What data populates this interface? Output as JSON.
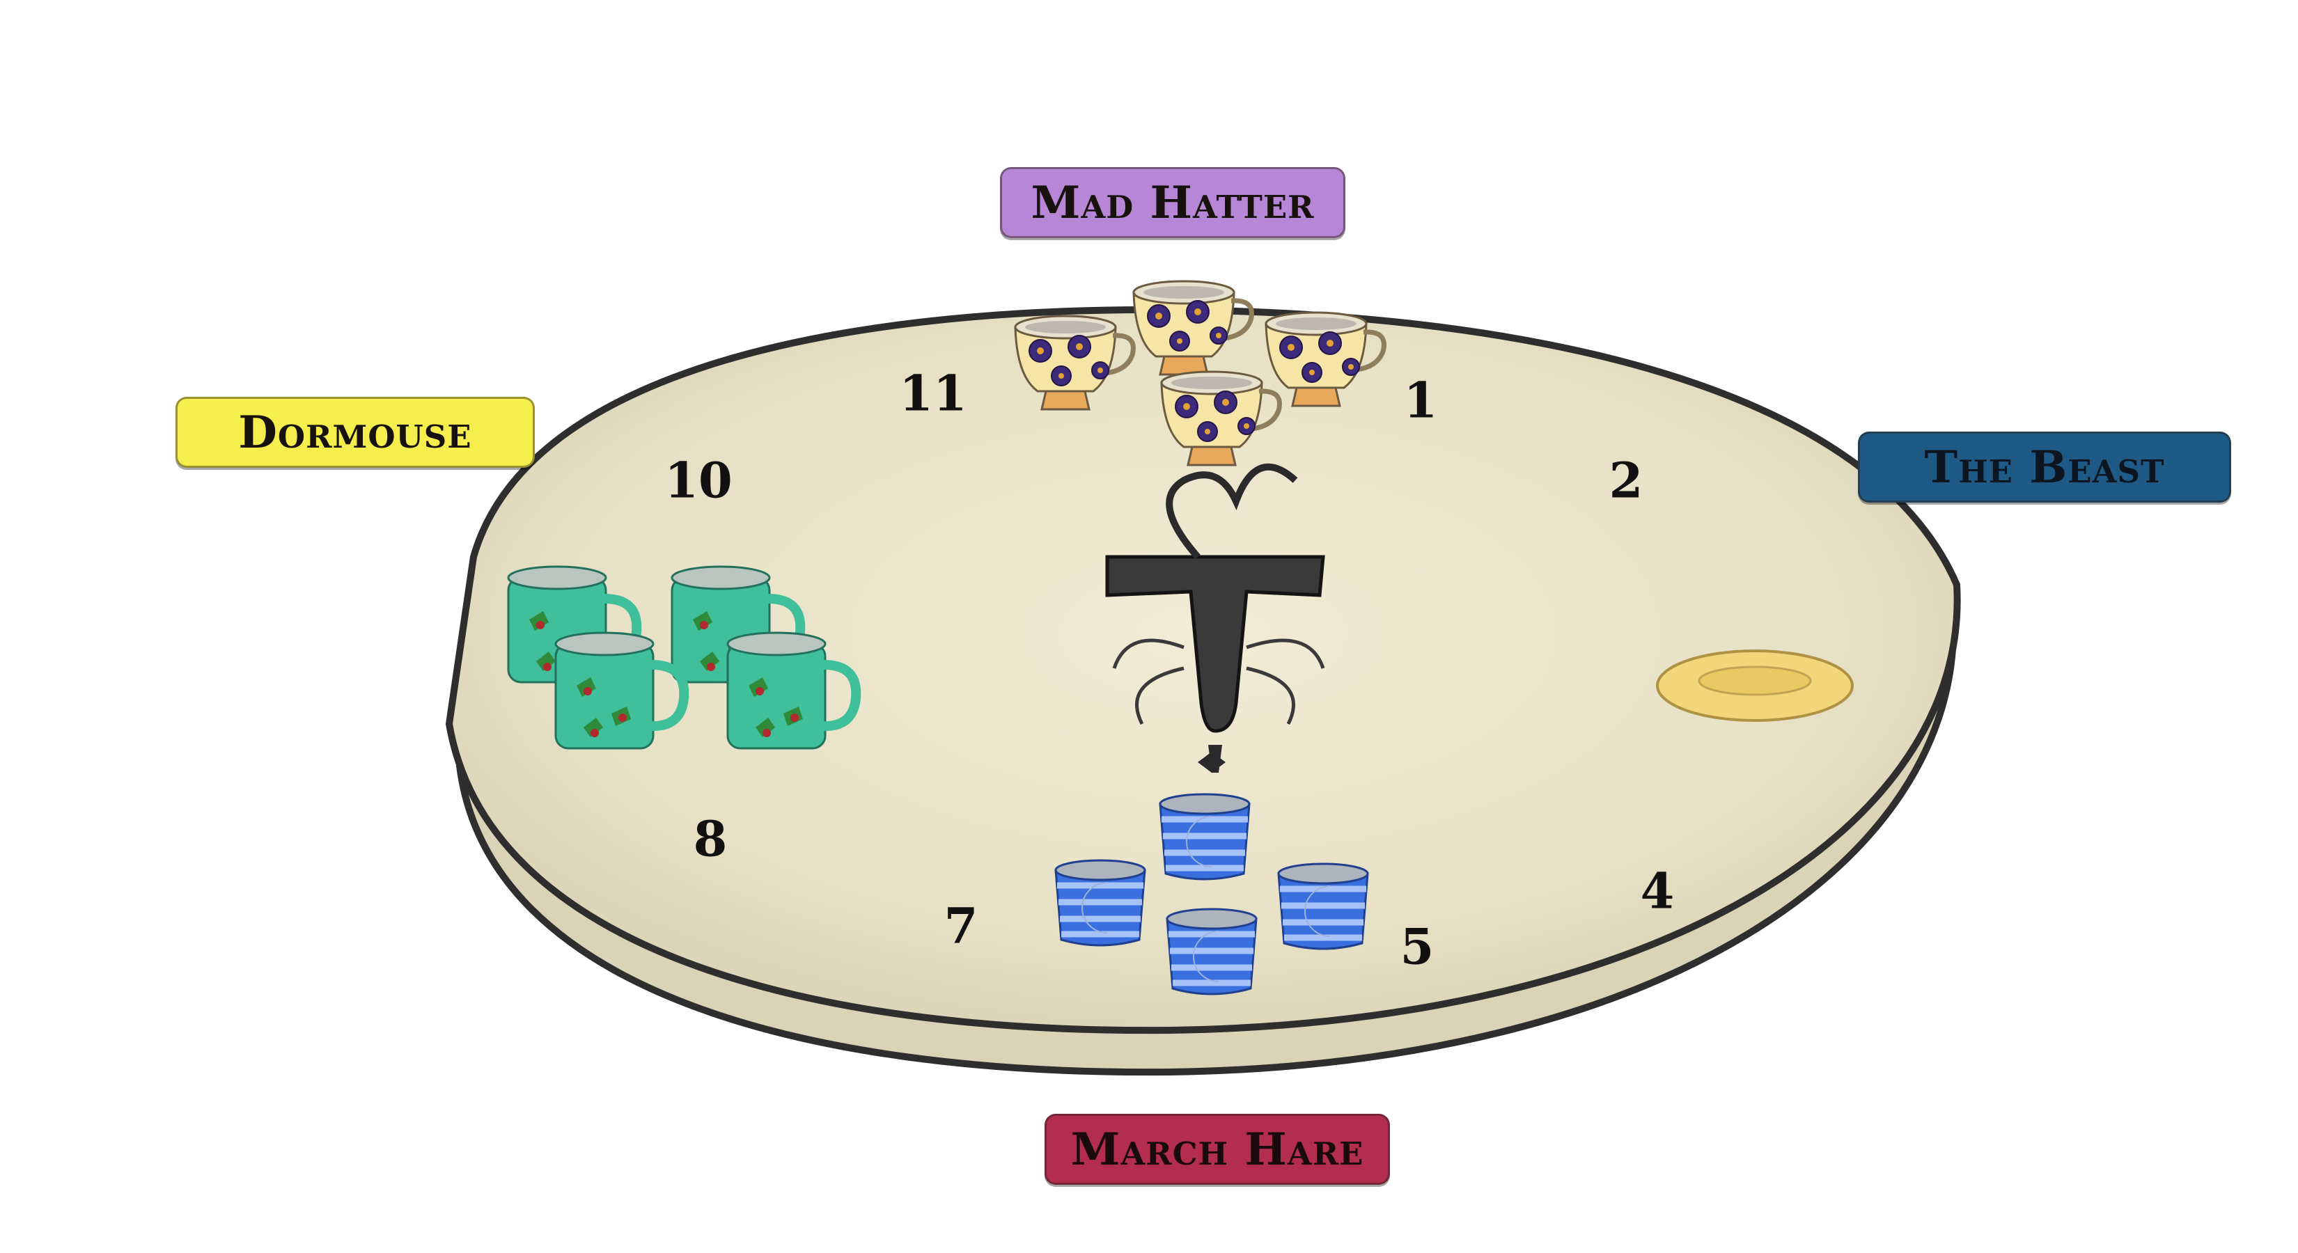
{
  "characters": {
    "top": "Mad Hatter",
    "left": "Dormouse",
    "right": "The Beast",
    "bottom": "March Hare"
  },
  "seats": [
    {
      "id": "seat-1",
      "label": "1"
    },
    {
      "id": "seat-2",
      "label": "2"
    },
    {
      "id": "seat-4",
      "label": "4"
    },
    {
      "id": "seat-5",
      "label": "5"
    },
    {
      "id": "seat-7",
      "label": "7"
    },
    {
      "id": "seat-8",
      "label": "8"
    },
    {
      "id": "seat-10",
      "label": "10"
    },
    {
      "id": "seat-11",
      "label": "11"
    }
  ],
  "table": {
    "centerpiece": "T",
    "items": [
      {
        "group": "flower-teacups",
        "icon": "teacup-icon",
        "count": 4
      },
      {
        "group": "holly-mugs",
        "icon": "mug-icon",
        "count": 4
      },
      {
        "group": "moon-cups",
        "icon": "cup-icon",
        "count": 4
      },
      {
        "group": "saucer",
        "icon": "saucer-icon",
        "count": 1
      }
    ]
  },
  "colors": {
    "mad_hatter": "#b886d6",
    "dormouse": "#f6ee4c",
    "beast": "#1f5a86",
    "march_hare": "#b32d4f",
    "table": "#e9e4cc"
  }
}
